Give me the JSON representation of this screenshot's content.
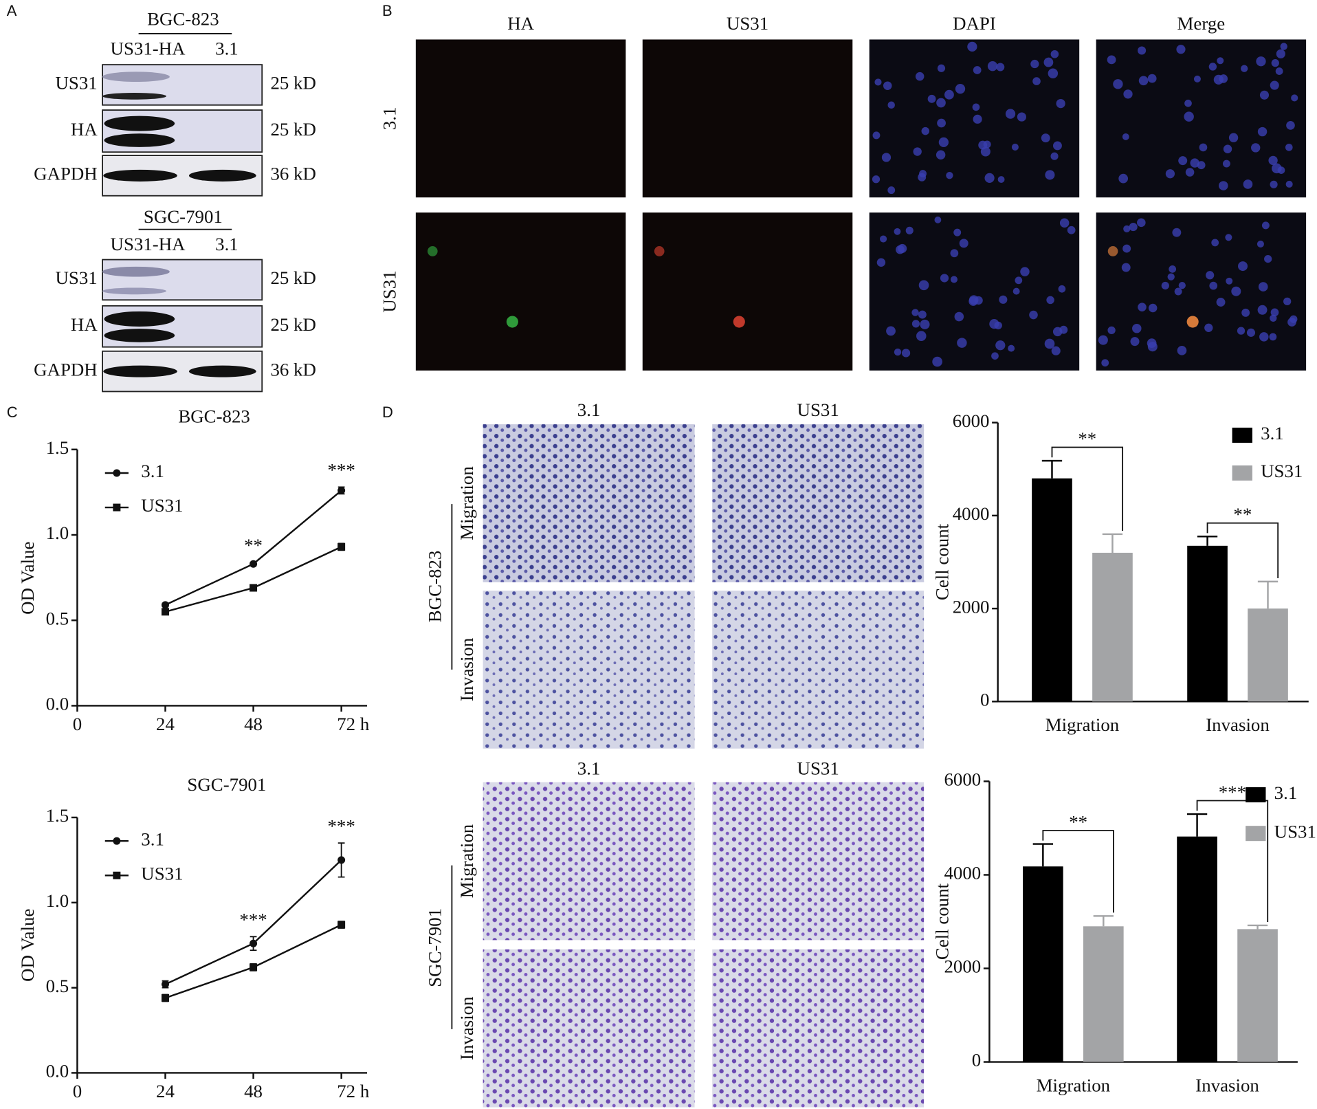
{
  "panel_labels": [
    "A",
    "B",
    "C",
    "D"
  ],
  "western_blot": [
    {
      "cell_line": "BGC-823",
      "lanes": [
        "US31-HA",
        "3.1"
      ],
      "rows": [
        {
          "label": "US31",
          "size": "25 kD"
        },
        {
          "label": "HA",
          "size": "25 kD"
        },
        {
          "label": "GAPDH",
          "size": "36 kD"
        }
      ]
    },
    {
      "cell_line": "SGC-7901",
      "lanes": [
        "US31-HA",
        "3.1"
      ],
      "rows": [
        {
          "label": "US31",
          "size": "25 kD"
        },
        {
          "label": "HA",
          "size": "25 kD"
        },
        {
          "label": "GAPDH",
          "size": "36 kD"
        }
      ]
    }
  ],
  "immunofluorescence": {
    "columns": [
      "HA",
      "US31",
      "DAPI",
      "Merge"
    ],
    "rows": [
      "3.1",
      "US31"
    ]
  },
  "transwell": [
    {
      "cell_line": "BGC-823",
      "columns": [
        "3.1",
        "US31"
      ],
      "rows": [
        "Migration",
        "Invasion"
      ]
    },
    {
      "cell_line": "SGC-7901",
      "columns": [
        "3.1",
        "US31"
      ],
      "rows": [
        "Migration",
        "Invasion"
      ]
    }
  ],
  "chart_data": [
    {
      "type": "line",
      "title": "BGC-823",
      "ylabel": "OD Value",
      "x": [
        24,
        48,
        72
      ],
      "xlim": [
        0,
        79
      ],
      "xticks": [
        0,
        24,
        48,
        {
          "value": 72,
          "label": "72 h"
        }
      ],
      "ylim": [
        0,
        1.5
      ],
      "yticks": [
        {
          "value": 0,
          "label": "0.0"
        },
        0.5,
        {
          "value": 1,
          "label": "1.0"
        },
        1.5
      ],
      "legend": "upper left",
      "series": [
        {
          "name": "3.1",
          "color": "#111111",
          "marker": "circle",
          "values": [
            0.59,
            0.83,
            1.26
          ],
          "errors": [
            0.01,
            0.01,
            0.02
          ]
        },
        {
          "name": "US31",
          "color": "#111111",
          "marker": "square",
          "values": [
            0.55,
            0.69,
            0.93
          ],
          "errors": [
            0.01,
            0.01,
            0.02
          ]
        }
      ],
      "annotations": [
        {
          "x": 48,
          "text": "**"
        },
        {
          "x": 72,
          "text": "***"
        }
      ]
    },
    {
      "type": "line",
      "title": "SGC-7901",
      "ylabel": "OD Value",
      "x": [
        24,
        48,
        72
      ],
      "xlim": [
        0,
        79
      ],
      "xticks": [
        0,
        24,
        48,
        {
          "value": 72,
          "label": "72 h"
        }
      ],
      "ylim": [
        0,
        1.5
      ],
      "yticks": [
        {
          "value": 0,
          "label": "0.0"
        },
        0.5,
        {
          "value": 1,
          "label": "1.0"
        },
        1.5
      ],
      "legend": "upper left",
      "series": [
        {
          "name": "3.1",
          "color": "#111111",
          "marker": "circle",
          "values": [
            0.52,
            0.76,
            1.25
          ],
          "errors": [
            0.02,
            0.04,
            0.1
          ]
        },
        {
          "name": "US31",
          "color": "#111111",
          "marker": "square",
          "values": [
            0.44,
            0.62,
            0.87
          ],
          "errors": [
            0.02,
            0.02,
            0.02
          ]
        }
      ],
      "annotations": [
        {
          "x": 48,
          "text": "***"
        },
        {
          "x": 72,
          "text": "***"
        }
      ]
    },
    {
      "type": "bar",
      "ylabel": "Cell count",
      "categories": [
        "Migration",
        "Invasion"
      ],
      "ylim": [
        0,
        6000
      ],
      "yticks": [
        0,
        2000,
        4000,
        6000
      ],
      "legend": "upper right",
      "series": [
        {
          "name": "3.1",
          "color": "#000000",
          "values": [
            4800,
            3350
          ],
          "errors": [
            380,
            200
          ]
        },
        {
          "name": "US31",
          "color": "#a3a4a6",
          "values": [
            3200,
            2000
          ],
          "errors": [
            400,
            580
          ]
        }
      ],
      "significance": [
        "**",
        "**"
      ]
    },
    {
      "type": "bar",
      "ylabel": "Cell count",
      "categories": [
        "Migration",
        "Invasion"
      ],
      "ylim": [
        0,
        6000
      ],
      "yticks": [
        0,
        2000,
        4000,
        6000
      ],
      "legend": "upper right",
      "series": [
        {
          "name": "3.1",
          "color": "#000000",
          "values": [
            4180,
            4820
          ],
          "errors": [
            480,
            480
          ]
        },
        {
          "name": "US31",
          "color": "#a3a4a6",
          "values": [
            2900,
            2840
          ],
          "errors": [
            220,
            80
          ]
        }
      ],
      "significance": [
        "**",
        "***"
      ]
    }
  ]
}
